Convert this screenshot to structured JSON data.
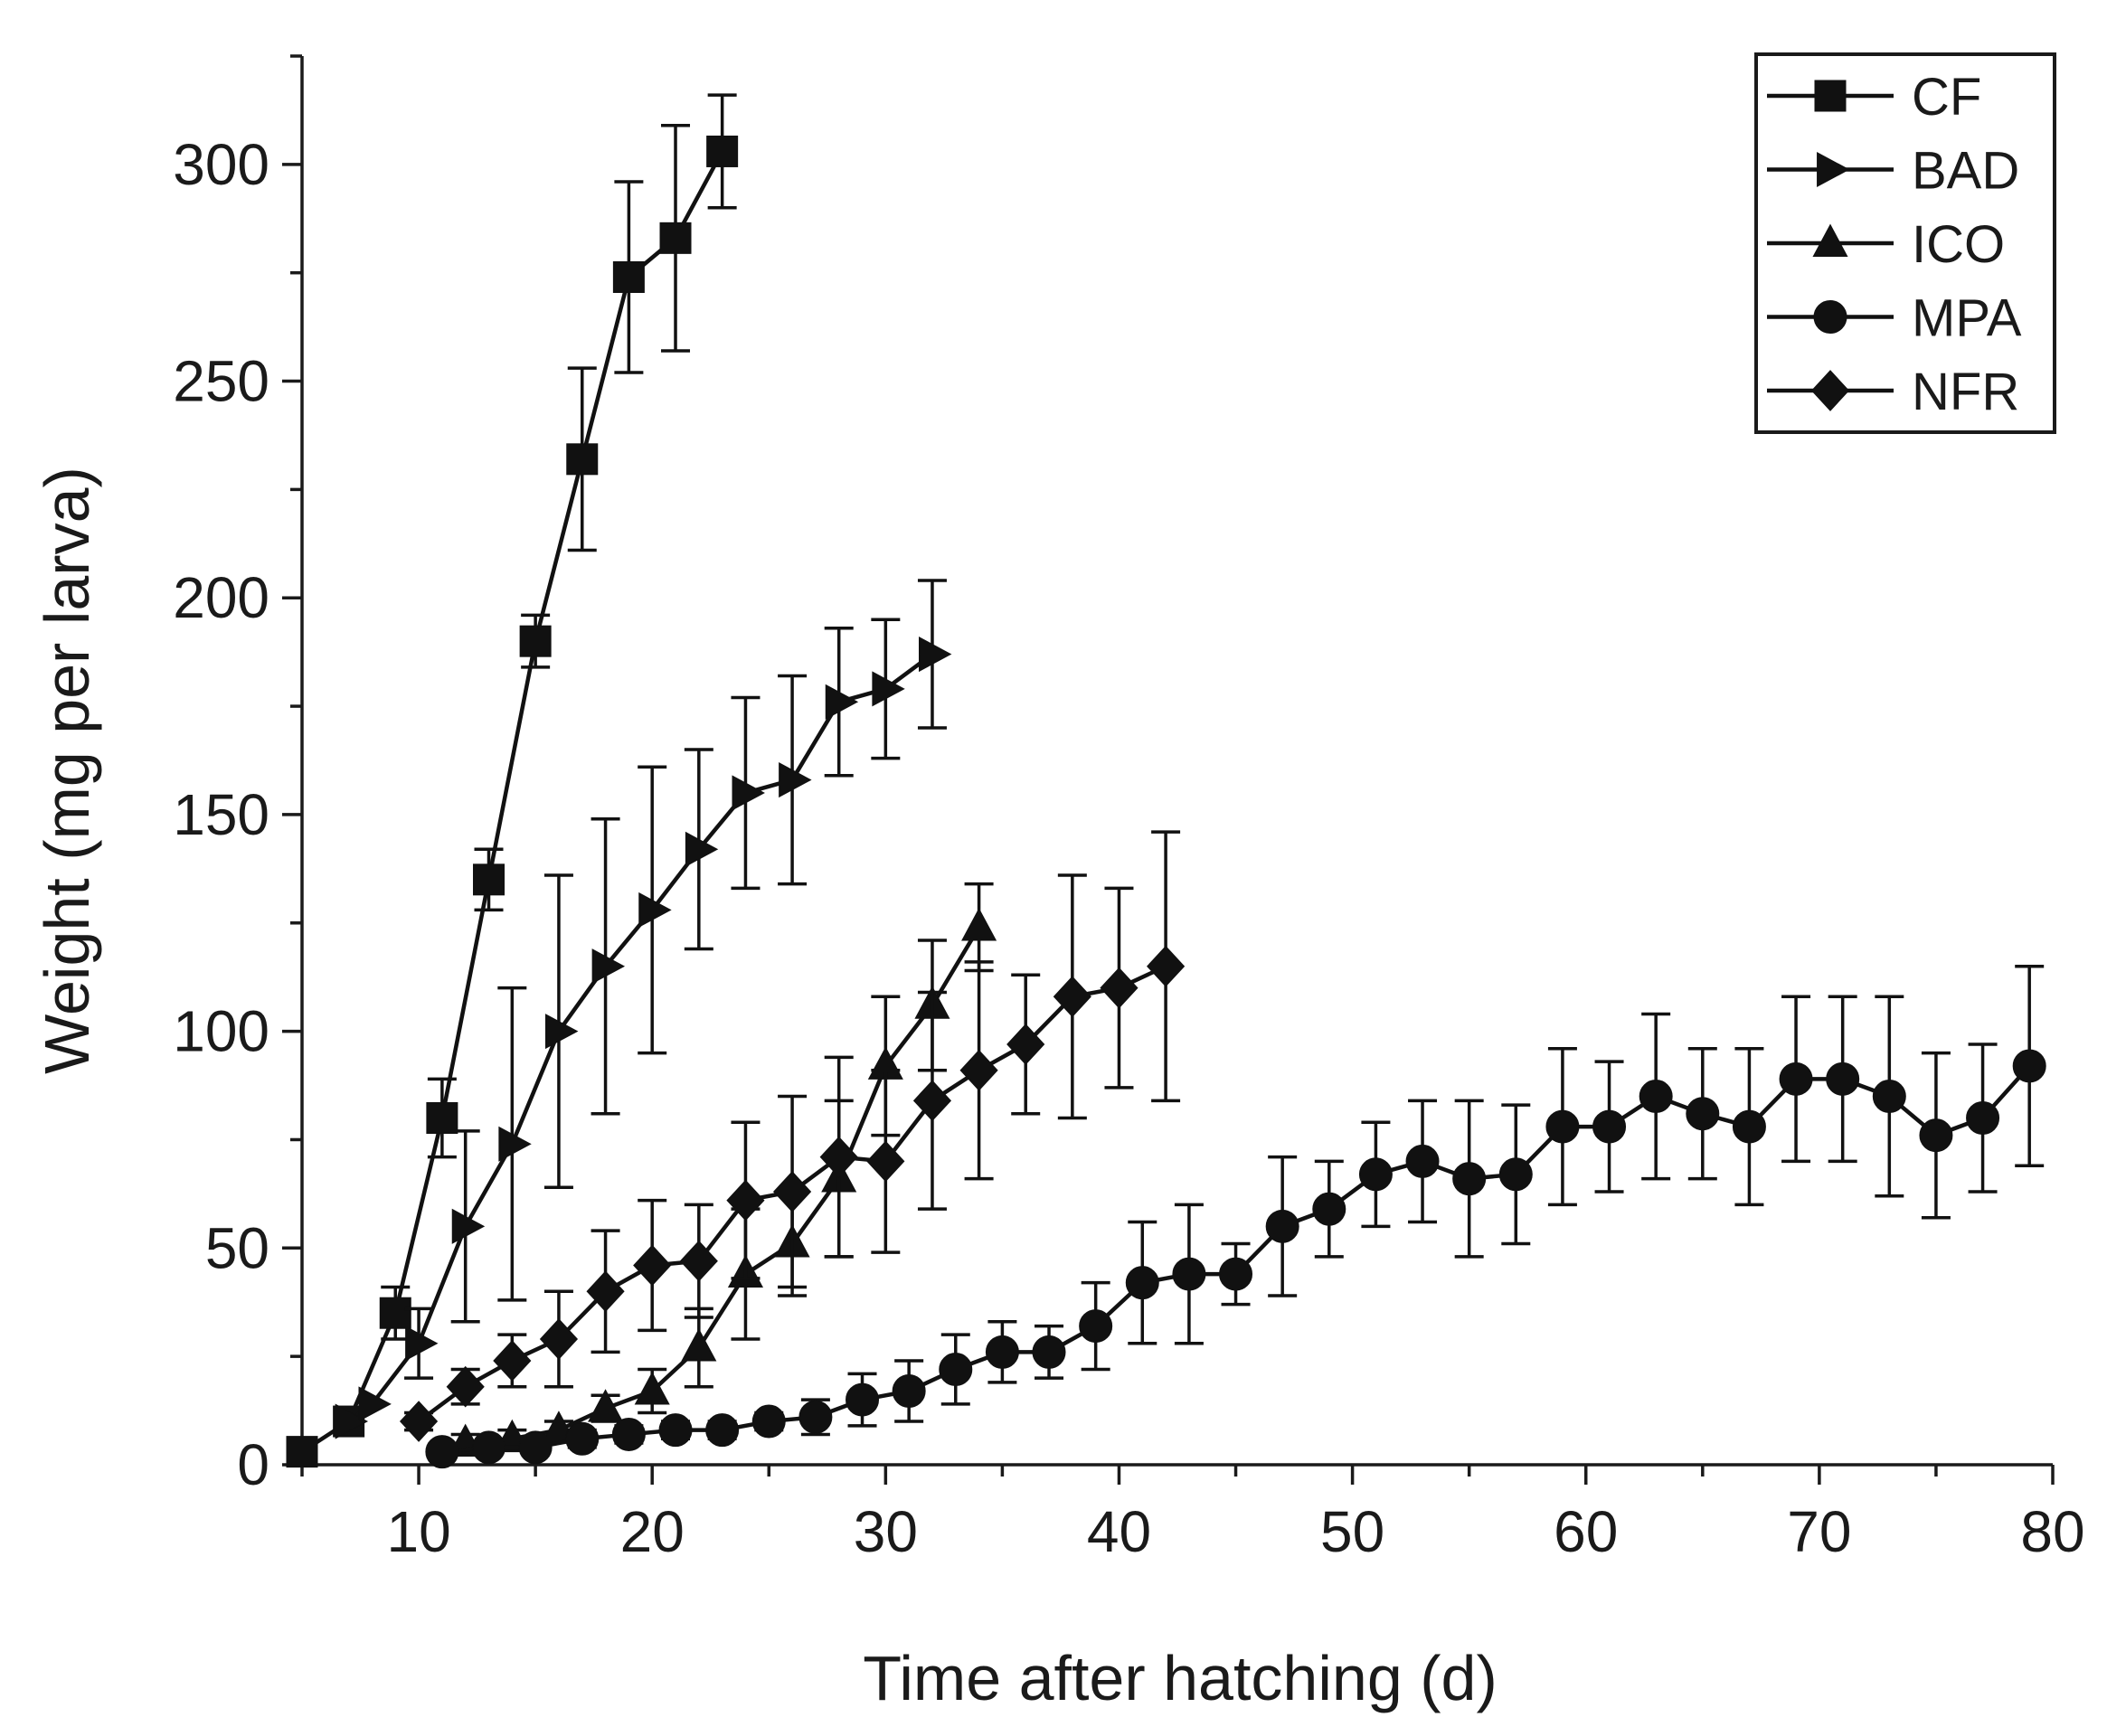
{
  "chart_data": {
    "type": "line",
    "title": "",
    "xlabel": "Time after hatching (d)",
    "ylabel": "Weight (mg per larva)",
    "xlim": [
      5,
      80
    ],
    "ylim": [
      0,
      325
    ],
    "xticks": [
      10,
      20,
      30,
      40,
      50,
      60,
      70,
      80
    ],
    "yticks": [
      0,
      50,
      100,
      150,
      200,
      250,
      300
    ],
    "legend_position": "top-right",
    "series": [
      {
        "name": "CF",
        "marker": "square",
        "x": [
          5,
          7,
          9,
          11,
          13,
          15,
          17,
          19,
          21,
          23
        ],
        "y": [
          3,
          10,
          35,
          80,
          135,
          190,
          232,
          274,
          283,
          303
        ],
        "err": [
          0,
          0,
          6,
          9,
          7,
          6,
          21,
          22,
          26,
          13
        ]
      },
      {
        "name": "BAD",
        "marker": "triangle-right",
        "x": [
          7,
          8,
          10,
          12,
          14,
          16,
          18,
          20,
          22,
          24,
          26,
          28,
          30,
          32
        ],
        "y": [
          10,
          14,
          28,
          55,
          74,
          100,
          115,
          128,
          142,
          155,
          158,
          176,
          179,
          187
        ],
        "err": [
          0,
          0,
          8,
          22,
          36,
          36,
          34,
          33,
          23,
          22,
          24,
          17,
          16,
          17
        ]
      },
      {
        "name": "ICO",
        "marker": "triangle-up",
        "x": [
          12,
          14,
          16,
          18,
          20,
          22,
          24,
          26,
          28,
          30,
          32,
          34
        ],
        "y": [
          5,
          6,
          8,
          13,
          17,
          27,
          44,
          51,
          66,
          92,
          106,
          124
        ],
        "err": [
          2,
          2,
          2,
          3,
          5,
          9,
          15,
          12,
          18,
          16,
          15,
          10
        ]
      },
      {
        "name": "MPA",
        "marker": "circle",
        "x": [
          11,
          13,
          15,
          17,
          19,
          21,
          23,
          25,
          27,
          29,
          31,
          33,
          35,
          37,
          39,
          41,
          43,
          45,
          47,
          49,
          51,
          53,
          55,
          57,
          59,
          61,
          63,
          65,
          67,
          69,
          71,
          73,
          75,
          77,
          79
        ],
        "y": [
          3,
          4,
          4,
          6,
          7,
          8,
          8,
          10,
          11,
          15,
          17,
          22,
          26,
          26,
          32,
          42,
          44,
          44,
          55,
          59,
          67,
          70,
          66,
          67,
          78,
          78,
          85,
          81,
          78,
          89,
          89,
          85,
          76,
          80,
          92
        ],
        "err": [
          1,
          1,
          1,
          2,
          2,
          2,
          2,
          2,
          4,
          6,
          7,
          8,
          7,
          6,
          10,
          14,
          16,
          7,
          16,
          11,
          12,
          14,
          18,
          16,
          18,
          15,
          19,
          15,
          18,
          19,
          19,
          23,
          19,
          17,
          23
        ]
      },
      {
        "name": "NFR",
        "marker": "diamond",
        "x": [
          10,
          12,
          14,
          16,
          18,
          20,
          22,
          24,
          26,
          28,
          30,
          32,
          34,
          36,
          38,
          40,
          42
        ],
        "y": [
          10,
          18,
          24,
          29,
          40,
          46,
          47,
          61,
          63,
          71,
          70,
          84,
          91,
          97,
          108,
          110,
          115
        ],
        "err": [
          2,
          4,
          6,
          11,
          14,
          15,
          13,
          18,
          22,
          23,
          21,
          25,
          25,
          16,
          28,
          23,
          31
        ]
      }
    ]
  }
}
